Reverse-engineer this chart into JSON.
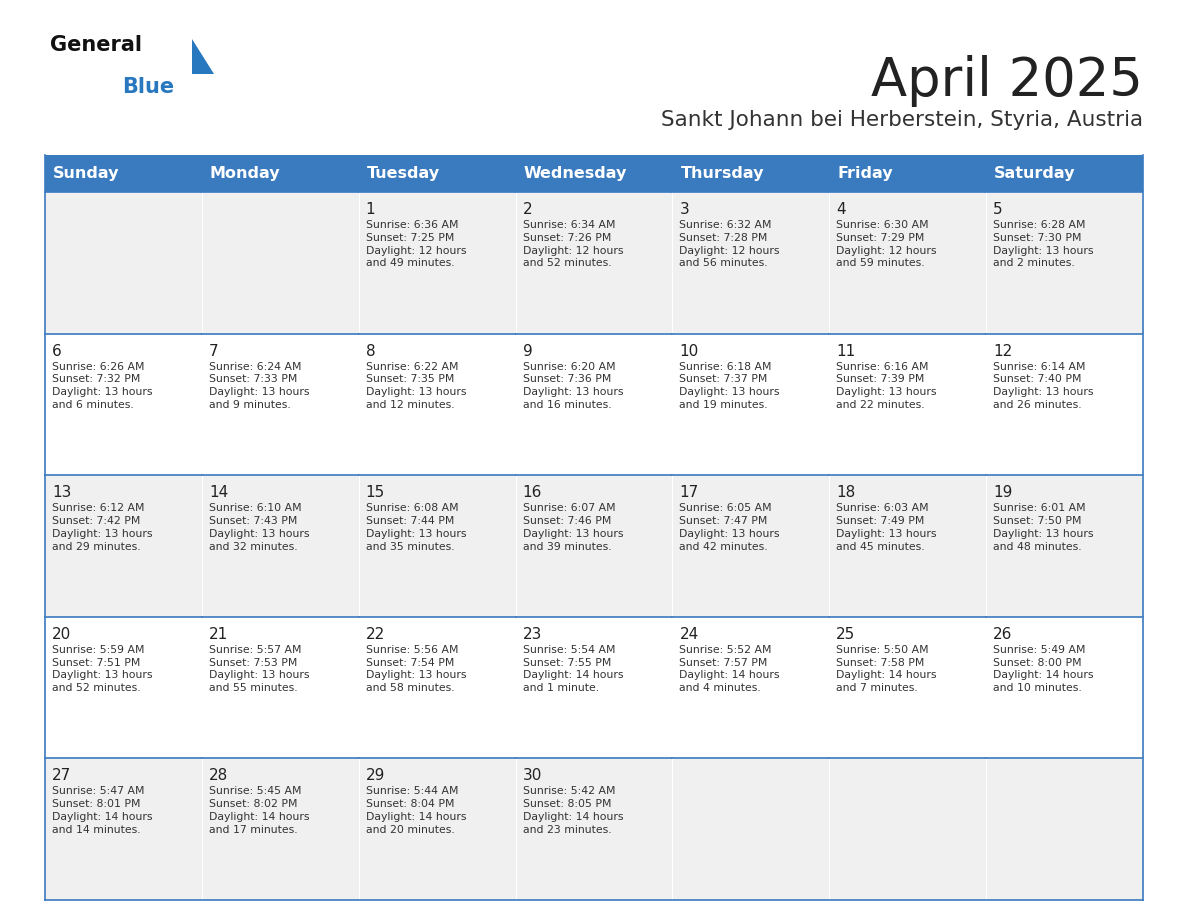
{
  "title": "April 2025",
  "subtitle": "Sankt Johann bei Herberstein, Styria, Austria",
  "header_bg": "#3a7abf",
  "header_text": "#ffffff",
  "cell_bg_odd": "#f0f0f0",
  "cell_bg_even": "#ffffff",
  "cell_border": "#3a7abf",
  "text_color": "#333333",
  "days_of_week": [
    "Sunday",
    "Monday",
    "Tuesday",
    "Wednesday",
    "Thursday",
    "Friday",
    "Saturday"
  ],
  "title_color": "#222222",
  "subtitle_color": "#333333",
  "logo_general_color": "#111111",
  "logo_blue_color": "#2878bf",
  "calendar": [
    [
      {
        "day": "",
        "text": ""
      },
      {
        "day": "",
        "text": ""
      },
      {
        "day": "1",
        "text": "Sunrise: 6:36 AM\nSunset: 7:25 PM\nDaylight: 12 hours\nand 49 minutes."
      },
      {
        "day": "2",
        "text": "Sunrise: 6:34 AM\nSunset: 7:26 PM\nDaylight: 12 hours\nand 52 minutes."
      },
      {
        "day": "3",
        "text": "Sunrise: 6:32 AM\nSunset: 7:28 PM\nDaylight: 12 hours\nand 56 minutes."
      },
      {
        "day": "4",
        "text": "Sunrise: 6:30 AM\nSunset: 7:29 PM\nDaylight: 12 hours\nand 59 minutes."
      },
      {
        "day": "5",
        "text": "Sunrise: 6:28 AM\nSunset: 7:30 PM\nDaylight: 13 hours\nand 2 minutes."
      }
    ],
    [
      {
        "day": "6",
        "text": "Sunrise: 6:26 AM\nSunset: 7:32 PM\nDaylight: 13 hours\nand 6 minutes."
      },
      {
        "day": "7",
        "text": "Sunrise: 6:24 AM\nSunset: 7:33 PM\nDaylight: 13 hours\nand 9 minutes."
      },
      {
        "day": "8",
        "text": "Sunrise: 6:22 AM\nSunset: 7:35 PM\nDaylight: 13 hours\nand 12 minutes."
      },
      {
        "day": "9",
        "text": "Sunrise: 6:20 AM\nSunset: 7:36 PM\nDaylight: 13 hours\nand 16 minutes."
      },
      {
        "day": "10",
        "text": "Sunrise: 6:18 AM\nSunset: 7:37 PM\nDaylight: 13 hours\nand 19 minutes."
      },
      {
        "day": "11",
        "text": "Sunrise: 6:16 AM\nSunset: 7:39 PM\nDaylight: 13 hours\nand 22 minutes."
      },
      {
        "day": "12",
        "text": "Sunrise: 6:14 AM\nSunset: 7:40 PM\nDaylight: 13 hours\nand 26 minutes."
      }
    ],
    [
      {
        "day": "13",
        "text": "Sunrise: 6:12 AM\nSunset: 7:42 PM\nDaylight: 13 hours\nand 29 minutes."
      },
      {
        "day": "14",
        "text": "Sunrise: 6:10 AM\nSunset: 7:43 PM\nDaylight: 13 hours\nand 32 minutes."
      },
      {
        "day": "15",
        "text": "Sunrise: 6:08 AM\nSunset: 7:44 PM\nDaylight: 13 hours\nand 35 minutes."
      },
      {
        "day": "16",
        "text": "Sunrise: 6:07 AM\nSunset: 7:46 PM\nDaylight: 13 hours\nand 39 minutes."
      },
      {
        "day": "17",
        "text": "Sunrise: 6:05 AM\nSunset: 7:47 PM\nDaylight: 13 hours\nand 42 minutes."
      },
      {
        "day": "18",
        "text": "Sunrise: 6:03 AM\nSunset: 7:49 PM\nDaylight: 13 hours\nand 45 minutes."
      },
      {
        "day": "19",
        "text": "Sunrise: 6:01 AM\nSunset: 7:50 PM\nDaylight: 13 hours\nand 48 minutes."
      }
    ],
    [
      {
        "day": "20",
        "text": "Sunrise: 5:59 AM\nSunset: 7:51 PM\nDaylight: 13 hours\nand 52 minutes."
      },
      {
        "day": "21",
        "text": "Sunrise: 5:57 AM\nSunset: 7:53 PM\nDaylight: 13 hours\nand 55 minutes."
      },
      {
        "day": "22",
        "text": "Sunrise: 5:56 AM\nSunset: 7:54 PM\nDaylight: 13 hours\nand 58 minutes."
      },
      {
        "day": "23",
        "text": "Sunrise: 5:54 AM\nSunset: 7:55 PM\nDaylight: 14 hours\nand 1 minute."
      },
      {
        "day": "24",
        "text": "Sunrise: 5:52 AM\nSunset: 7:57 PM\nDaylight: 14 hours\nand 4 minutes."
      },
      {
        "day": "25",
        "text": "Sunrise: 5:50 AM\nSunset: 7:58 PM\nDaylight: 14 hours\nand 7 minutes."
      },
      {
        "day": "26",
        "text": "Sunrise: 5:49 AM\nSunset: 8:00 PM\nDaylight: 14 hours\nand 10 minutes."
      }
    ],
    [
      {
        "day": "27",
        "text": "Sunrise: 5:47 AM\nSunset: 8:01 PM\nDaylight: 14 hours\nand 14 minutes."
      },
      {
        "day": "28",
        "text": "Sunrise: 5:45 AM\nSunset: 8:02 PM\nDaylight: 14 hours\nand 17 minutes."
      },
      {
        "day": "29",
        "text": "Sunrise: 5:44 AM\nSunset: 8:04 PM\nDaylight: 14 hours\nand 20 minutes."
      },
      {
        "day": "30",
        "text": "Sunrise: 5:42 AM\nSunset: 8:05 PM\nDaylight: 14 hours\nand 23 minutes."
      },
      {
        "day": "",
        "text": ""
      },
      {
        "day": "",
        "text": ""
      },
      {
        "day": "",
        "text": ""
      }
    ]
  ]
}
